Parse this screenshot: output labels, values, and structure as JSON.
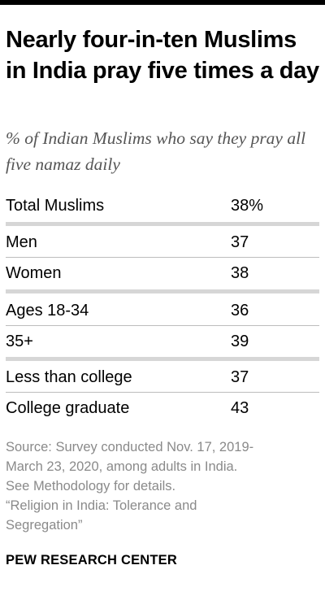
{
  "title": "Nearly four-in-ten Muslims in India pray five times a day",
  "subtitle": "% of Indian Muslims who say they pray all five namaz daily",
  "chart_data": {
    "type": "table",
    "title": "Nearly four-in-ten Muslims in India pray five times a day",
    "subtitle": "% of Indian Muslims who say they pray all five namaz daily",
    "rows": [
      {
        "label": "Total Muslims",
        "value": 38,
        "display": "38%"
      },
      {
        "label": "Men",
        "value": 37,
        "display": "37"
      },
      {
        "label": "Women",
        "value": 38,
        "display": "38"
      },
      {
        "label": "Ages 18-34",
        "value": 36,
        "display": "36"
      },
      {
        "label": "35+",
        "value": 39,
        "display": "39"
      },
      {
        "label": "Less than college",
        "value": 37,
        "display": "37"
      },
      {
        "label": "College graduate",
        "value": 43,
        "display": "43"
      }
    ]
  },
  "source": [
    "Source: Survey conducted Nov. 17, 2019-",
    "March 23, 2020, among adults in India.",
    "See Methodology for details.",
    "“Religion in India: Tolerance and",
    "Segregation”"
  ],
  "brand": "PEW RESEARCH CENTER"
}
